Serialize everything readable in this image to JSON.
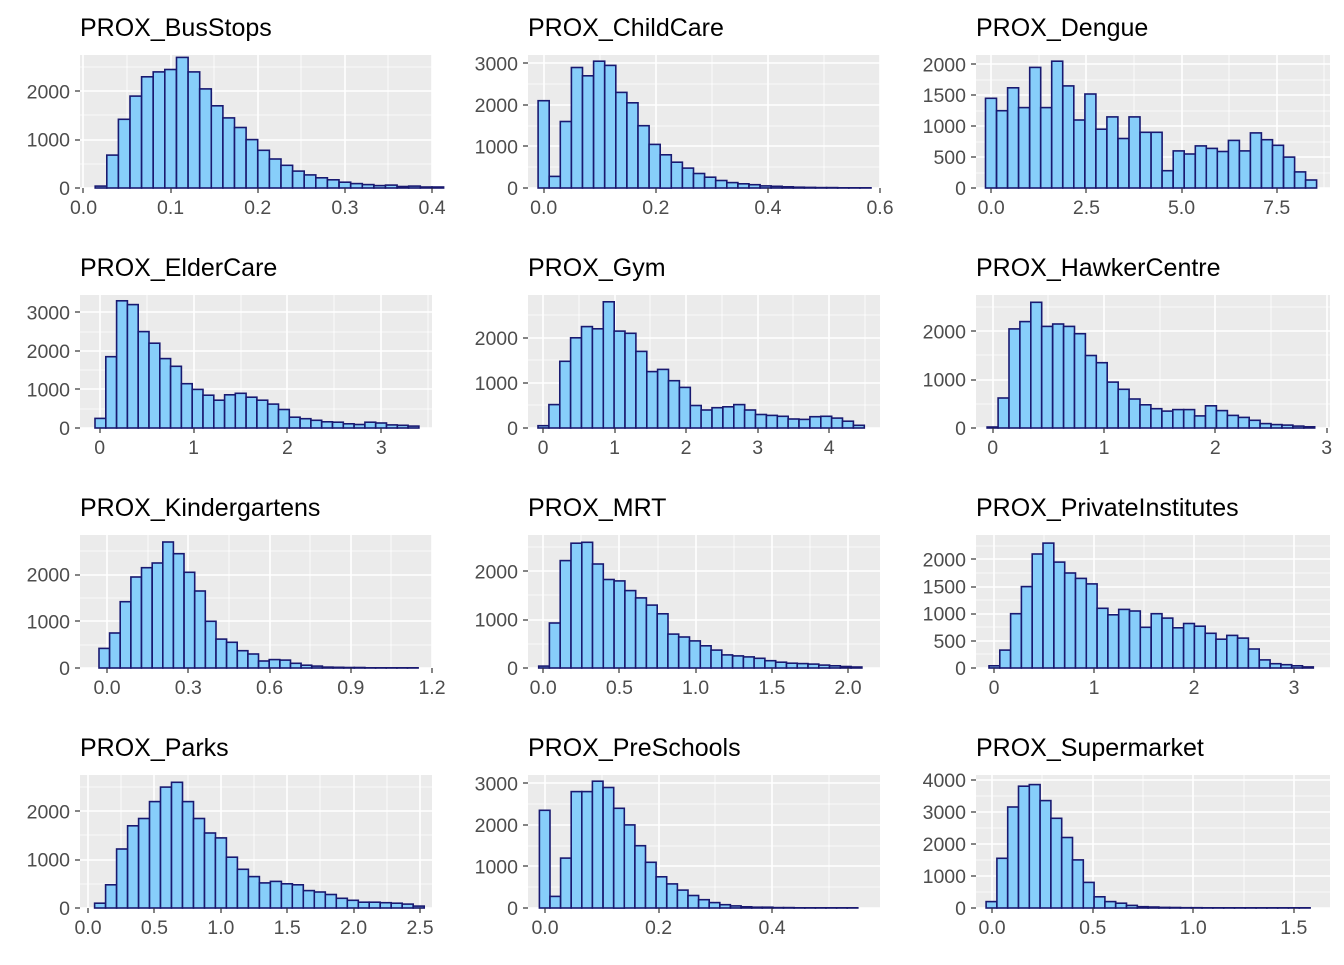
{
  "colors": {
    "panel": "#ebebeb",
    "grid": "#ffffff",
    "bar_fill": "#87cefa",
    "bar_stroke": "#191970",
    "tick_text": "#4d4d4d",
    "title_text": "#000000"
  },
  "chart_data": [
    {
      "type": "bar",
      "title": "PROX_BusStops",
      "xlim": [
        -0.004,
        0.4
      ],
      "ylim": [
        0,
        2750
      ],
      "xticks": [
        0.0,
        0.1,
        0.2,
        0.3,
        0.4
      ],
      "xtick_labels": [
        "0.0",
        "0.1",
        "0.2",
        "0.3",
        "0.4"
      ],
      "yticks": [
        0,
        1000,
        2000
      ],
      "ytick_labels": [
        "0",
        "1000",
        "2000"
      ],
      "bins_start": 0.0134,
      "bin_width": 0.01333,
      "values": [
        40,
        680,
        1420,
        1900,
        2300,
        2400,
        2450,
        2700,
        2400,
        2050,
        1700,
        1450,
        1250,
        1000,
        780,
        600,
        470,
        350,
        270,
        210,
        170,
        120,
        90,
        70,
        50,
        60,
        30,
        40,
        20,
        20
      ]
    },
    {
      "type": "bar",
      "title": "PROX_ChildCare",
      "xlim": [
        -0.028,
        0.6
      ],
      "ylim": [
        0,
        3200
      ],
      "xticks": [
        0.0,
        0.2,
        0.4,
        0.6
      ],
      "xtick_labels": [
        "0.0",
        "0.2",
        "0.4",
        "0.6"
      ],
      "yticks": [
        0,
        1000,
        2000,
        3000
      ],
      "ytick_labels": [
        "0",
        "1000",
        "2000",
        "3000"
      ],
      "bins_start": -0.01,
      "bin_width": 0.0198,
      "values": [
        2100,
        280,
        1600,
        2900,
        2700,
        3050,
        2950,
        2300,
        2050,
        1500,
        1050,
        800,
        620,
        480,
        350,
        260,
        180,
        130,
        100,
        80,
        50,
        40,
        30,
        20,
        15,
        10,
        10,
        5,
        5,
        5
      ]
    },
    {
      "type": "bar",
      "title": "PROX_Dengue",
      "xlim": [
        -0.4,
        8.9
      ],
      "ylim": [
        0,
        2150
      ],
      "xticks": [
        0.0,
        2.5,
        5.0,
        7.5
      ],
      "xtick_labels": [
        "0.0",
        "2.5",
        "5.0",
        "7.5"
      ],
      "yticks": [
        0,
        500,
        1000,
        1500,
        2000
      ],
      "ytick_labels": [
        "0",
        "500",
        "1000",
        "1500",
        "2000"
      ],
      "bins_start": -0.15,
      "bin_width": 0.29,
      "values": [
        1450,
        1250,
        1620,
        1300,
        1950,
        1300,
        2050,
        1650,
        1100,
        1520,
        950,
        1150,
        800,
        1150,
        900,
        900,
        280,
        600,
        550,
        680,
        640,
        590,
        770,
        600,
        890,
        780,
        690,
        500,
        260,
        130
      ]
    },
    {
      "type": "bar",
      "title": "PROX_ElderCare",
      "xlim": [
        -0.21,
        3.54
      ],
      "ylim": [
        0,
        3450
      ],
      "xticks": [
        0,
        1,
        2,
        3
      ],
      "xtick_labels": [
        "0",
        "1",
        "2",
        "3"
      ],
      "yticks": [
        0,
        1000,
        2000,
        3000
      ],
      "ytick_labels": [
        "0",
        "1000",
        "2000",
        "3000"
      ],
      "bins_start": -0.05,
      "bin_width": 0.115,
      "values": [
        250,
        1850,
        3300,
        3200,
        2500,
        2200,
        1800,
        1600,
        1150,
        1000,
        850,
        720,
        860,
        900,
        800,
        720,
        620,
        480,
        280,
        240,
        200,
        160,
        150,
        110,
        90,
        150,
        130,
        80,
        70,
        50
      ]
    },
    {
      "type": "bar",
      "title": "PROX_Gym",
      "xlim": [
        -0.21,
        4.71
      ],
      "ylim": [
        0,
        2950
      ],
      "xticks": [
        0,
        1,
        2,
        3,
        4
      ],
      "xtick_labels": [
        "0",
        "1",
        "2",
        "3",
        "4"
      ],
      "yticks": [
        0,
        1000,
        2000
      ],
      "ytick_labels": [
        "0",
        "1000",
        "2000"
      ],
      "bins_start": -0.07,
      "bin_width": 0.152,
      "values": [
        50,
        520,
        1480,
        2000,
        2250,
        2200,
        2800,
        2150,
        2100,
        1700,
        1250,
        1300,
        1050,
        900,
        500,
        400,
        450,
        470,
        520,
        400,
        300,
        280,
        260,
        200,
        190,
        250,
        260,
        220,
        150,
        60
      ]
    },
    {
      "type": "bar",
      "title": "PROX_HawkerCentre",
      "xlim": [
        -0.15,
        3.03
      ],
      "ylim": [
        0,
        2750
      ],
      "xticks": [
        0,
        1,
        2,
        3
      ],
      "xtick_labels": [
        "0",
        "1",
        "2",
        "3"
      ],
      "yticks": [
        0,
        1000,
        2000
      ],
      "ytick_labels": [
        "0",
        "1000",
        "2000"
      ],
      "bins_start": -0.05,
      "bin_width": 0.0981,
      "values": [
        20,
        620,
        2050,
        2200,
        2600,
        2100,
        2150,
        2100,
        1950,
        1500,
        1350,
        950,
        800,
        600,
        480,
        400,
        350,
        380,
        380,
        250,
        460,
        360,
        260,
        220,
        160,
        90,
        70,
        60,
        40,
        25
      ]
    },
    {
      "type": "bar",
      "title": "PROX_Kindergartens",
      "xlim": [
        -0.1,
        1.2
      ],
      "ylim": [
        0,
        2850
      ],
      "xticks": [
        0.0,
        0.3,
        0.6,
        0.9,
        1.2
      ],
      "xtick_labels": [
        "0.0",
        "0.3",
        "0.6",
        "0.9",
        "1.2"
      ],
      "yticks": [
        0,
        1000,
        2000
      ],
      "ytick_labels": [
        "0",
        "1000",
        "2000"
      ],
      "bins_start": -0.03,
      "bin_width": 0.0393,
      "values": [
        420,
        750,
        1420,
        1950,
        2150,
        2250,
        2700,
        2450,
        2050,
        1650,
        1000,
        620,
        550,
        370,
        300,
        150,
        180,
        170,
        100,
        60,
        40,
        20,
        15,
        10,
        10,
        5,
        5,
        5,
        5,
        5
      ]
    },
    {
      "type": "bar",
      "title": "PROX_MRT",
      "xlim": [
        -0.1,
        2.21
      ],
      "ylim": [
        0,
        2750
      ],
      "xticks": [
        0.0,
        0.5,
        1.0,
        1.5,
        2.0
      ],
      "xtick_labels": [
        "0.0",
        "0.5",
        "1.0",
        "1.5",
        "2.0"
      ],
      "yticks": [
        0,
        1000,
        2000
      ],
      "ytick_labels": [
        "0",
        "1000",
        "2000"
      ],
      "bins_start": -0.03,
      "bin_width": 0.0707,
      "values": [
        40,
        930,
        2220,
        2580,
        2600,
        2150,
        1830,
        1800,
        1600,
        1450,
        1300,
        1120,
        700,
        640,
        560,
        460,
        370,
        270,
        250,
        230,
        200,
        150,
        120,
        100,
        90,
        80,
        60,
        45,
        30,
        20
      ]
    },
    {
      "type": "bar",
      "title": "PROX_PrivateInstitutes",
      "xlim": [
        -0.18,
        3.36
      ],
      "ylim": [
        0,
        2450
      ],
      "xticks": [
        0,
        1,
        2,
        3
      ],
      "xtick_labels": [
        "0",
        "1",
        "2",
        "3"
      ],
      "yticks": [
        0,
        500,
        1000,
        1500,
        2000
      ],
      "ytick_labels": [
        "0",
        "500",
        "1000",
        "1500",
        "2000"
      ],
      "bins_start": -0.05,
      "bin_width": 0.1081,
      "values": [
        40,
        330,
        1000,
        1500,
        2100,
        2300,
        1950,
        1750,
        1650,
        1550,
        1100,
        980,
        1080,
        1050,
        750,
        1000,
        920,
        740,
        820,
        770,
        640,
        530,
        600,
        550,
        350,
        150,
        80,
        60,
        40,
        20
      ]
    },
    {
      "type": "bar",
      "title": "PROX_Parks",
      "xlim": [
        -0.06,
        2.59
      ],
      "ylim": [
        0,
        2750
      ],
      "xticks": [
        0.0,
        0.5,
        1.0,
        1.5,
        2.0,
        2.5
      ],
      "xtick_labels": [
        "0.0",
        "0.5",
        "1.0",
        "1.5",
        "2.0",
        "2.5"
      ],
      "yticks": [
        0,
        1000,
        2000
      ],
      "ytick_labels": [
        "0",
        "1000",
        "2000"
      ],
      "bins_start": 0.05,
      "bin_width": 0.0827,
      "values": [
        100,
        480,
        1220,
        1700,
        1850,
        2200,
        2500,
        2600,
        2200,
        1850,
        1550,
        1450,
        1050,
        800,
        650,
        520,
        550,
        500,
        480,
        360,
        330,
        280,
        200,
        160,
        120,
        120,
        110,
        100,
        80,
        40
      ]
    },
    {
      "type": "bar",
      "title": "PROX_PreSchools",
      "xlim": [
        -0.03,
        0.59
      ],
      "ylim": [
        0,
        3200
      ],
      "xticks": [
        0.0,
        0.2,
        0.4
      ],
      "xtick_labels": [
        "0.0",
        "0.2",
        "0.4"
      ],
      "yticks": [
        0,
        1000,
        2000,
        3000
      ],
      "ytick_labels": [
        "0",
        "1000",
        "2000",
        "3000"
      ],
      "bins_start": -0.01,
      "bin_width": 0.0187,
      "values": [
        2350,
        280,
        1200,
        2800,
        2800,
        3050,
        2900,
        2400,
        2000,
        1500,
        1100,
        750,
        580,
        430,
        300,
        200,
        130,
        80,
        50,
        30,
        20,
        20,
        10,
        10,
        5,
        5,
        5,
        5,
        5,
        5
      ]
    },
    {
      "type": "bar",
      "title": "PROX_Supermarket",
      "xlim": [
        -0.08,
        1.68
      ],
      "ylim": [
        0,
        4150
      ],
      "xticks": [
        0.0,
        0.5,
        1.0,
        1.5
      ],
      "xtick_labels": [
        "0.0",
        "0.5",
        "1.0",
        "1.5"
      ],
      "yticks": [
        0,
        1000,
        2000,
        3000,
        4000
      ],
      "ytick_labels": [
        "0",
        "1000",
        "2000",
        "3000",
        "4000"
      ],
      "bins_start": -0.03,
      "bin_width": 0.0537,
      "values": [
        200,
        1550,
        3150,
        3800,
        3850,
        3350,
        2800,
        2200,
        1500,
        800,
        350,
        200,
        150,
        80,
        40,
        30,
        20,
        15,
        10,
        10,
        5,
        5,
        5,
        5,
        5,
        5,
        5,
        5,
        5,
        5
      ]
    }
  ]
}
